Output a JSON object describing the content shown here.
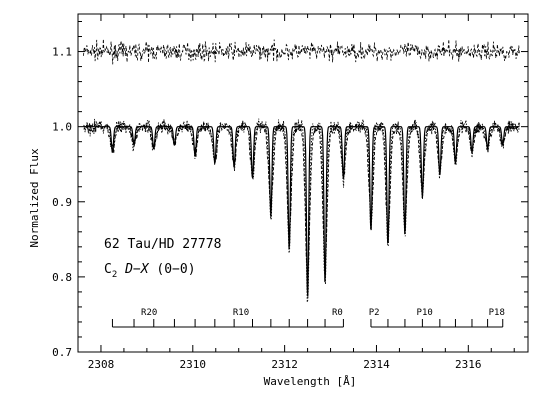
{
  "chart_data": {
    "type": "line",
    "xlabel": "Wavelength [Å]",
    "ylabel": "Normalized Flux",
    "xlim": [
      2307.5,
      2317.3
    ],
    "ylim": [
      0.7,
      1.15
    ],
    "xticks": [
      2308,
      2310,
      2312,
      2314,
      2316
    ],
    "yticks": [
      0.7,
      0.8,
      0.9,
      1.0,
      1.1
    ],
    "xtick_labels": [
      "2308",
      "2310",
      "2312",
      "2314",
      "2316"
    ],
    "ytick_labels": [
      "0.7",
      "0.8",
      "0.9",
      "1.0",
      "1.1"
    ],
    "annotation": {
      "line1": "62 Tau/HD 27778",
      "molecule": "C",
      "molecule_sub": "2",
      "transition": "D−X",
      "band": "(0−0)"
    },
    "series": [
      {
        "style": "solid",
        "continuum": 1.0,
        "lines": [
          {
            "x": 2308.25,
            "depth": 0.035
          },
          {
            "x": 2308.72,
            "depth": 0.025
          },
          {
            "x": 2309.15,
            "depth": 0.03
          },
          {
            "x": 2309.6,
            "depth": 0.025
          },
          {
            "x": 2310.05,
            "depth": 0.04
          },
          {
            "x": 2310.48,
            "depth": 0.05
          },
          {
            "x": 2310.9,
            "depth": 0.055
          },
          {
            "x": 2311.3,
            "depth": 0.07
          },
          {
            "x": 2311.7,
            "depth": 0.12
          },
          {
            "x": 2312.1,
            "depth": 0.165
          },
          {
            "x": 2312.5,
            "depth": 0.23
          },
          {
            "x": 2312.88,
            "depth": 0.21
          },
          {
            "x": 2313.28,
            "depth": 0.07
          },
          {
            "x": 2313.88,
            "depth": 0.14
          },
          {
            "x": 2314.25,
            "depth": 0.16
          },
          {
            "x": 2314.62,
            "depth": 0.145
          },
          {
            "x": 2315.0,
            "depth": 0.095
          },
          {
            "x": 2315.38,
            "depth": 0.065
          },
          {
            "x": 2315.72,
            "depth": 0.05
          },
          {
            "x": 2316.08,
            "depth": 0.035
          },
          {
            "x": 2316.42,
            "depth": 0.03
          },
          {
            "x": 2316.75,
            "depth": 0.025
          }
        ]
      },
      {
        "style": "dotted",
        "continuum": 1.0,
        "note": "model fits (two noisy variants)"
      },
      {
        "style": "dashed",
        "continuum": 1.1,
        "note": "comparison spectrum offset"
      }
    ],
    "branches": [
      {
        "name": "R",
        "x_start": 2308.25,
        "x_end": 2313.28,
        "tick_x": [
          2308.25,
          2308.72,
          2309.15,
          2309.6,
          2310.05,
          2310.48,
          2310.9,
          2311.3,
          2311.7,
          2312.1,
          2312.5,
          2312.88,
          2313.28
        ],
        "labels": [
          {
            "text": "R20",
            "x": 2309.05
          },
          {
            "text": "R10",
            "x": 2311.05
          },
          {
            "text": "R0",
            "x": 2313.15
          }
        ]
      },
      {
        "name": "P",
        "x_start": 2313.88,
        "x_end": 2316.75,
        "tick_x": [
          2313.88,
          2314.25,
          2314.62,
          2315.0,
          2315.38,
          2315.72,
          2316.08,
          2316.42,
          2316.75
        ],
        "labels": [
          {
            "text": "P2",
            "x": 2313.95
          },
          {
            "text": "P10",
            "x": 2315.05
          },
          {
            "text": "P18",
            "x": 2316.62
          }
        ]
      }
    ]
  }
}
